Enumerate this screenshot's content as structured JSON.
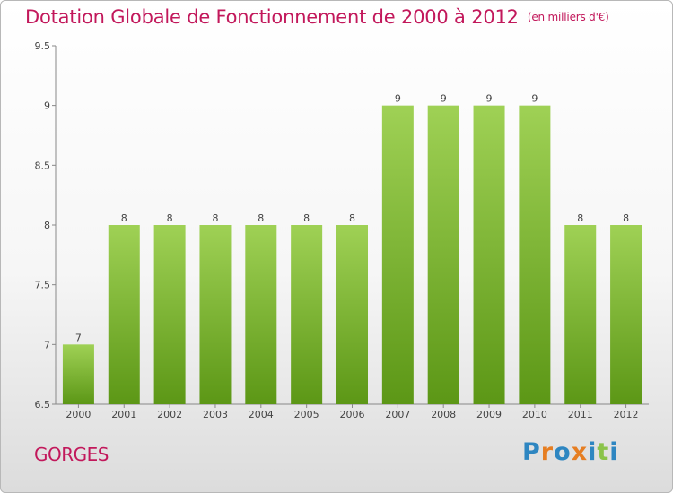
{
  "header": {
    "title": "Dotation Globale de Fonctionnement de 2000 à 2012",
    "subtitle": "(en milliers d'€)"
  },
  "footer": {
    "commune": "GORGES",
    "logo_text": "Proxiti"
  },
  "colors": {
    "accent": "#c2185b",
    "bar_light": "#9fd155",
    "bar_dark": "#5c9716",
    "logo_letters": [
      "#2e86c1",
      "#e67e22",
      "#2e86c1",
      "#e67e22",
      "#2e86c1",
      "#8bc34a",
      "#2e86c1"
    ]
  },
  "chart_data": {
    "type": "bar",
    "categories": [
      "2000",
      "2001",
      "2002",
      "2003",
      "2004",
      "2005",
      "2006",
      "2007",
      "2008",
      "2009",
      "2010",
      "2011",
      "2012"
    ],
    "values": [
      7,
      8,
      8,
      8,
      8,
      8,
      8,
      9,
      9,
      9,
      9,
      8,
      8
    ],
    "data_labels": [
      "7",
      "8",
      "8",
      "8",
      "8",
      "8",
      "8",
      "9",
      "9",
      "9",
      "9",
      "8",
      "8"
    ],
    "yticks": [
      6.5,
      7,
      7.5,
      8,
      8.5,
      9,
      9.5
    ],
    "ytick_labels": [
      "6.5",
      "7",
      "7.5",
      "8",
      "8.5",
      "9",
      "9.5"
    ],
    "ylim": [
      6.5,
      9.5
    ],
    "title": "Dotation Globale de Fonctionnement de 2000 à 2012",
    "xlabel": "",
    "ylabel": "",
    "grid": false,
    "legend": "none"
  }
}
